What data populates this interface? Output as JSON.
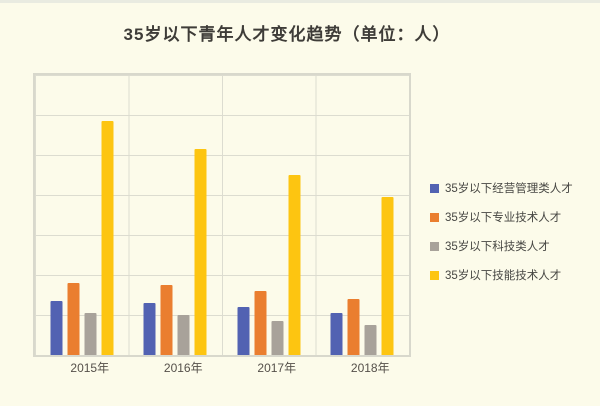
{
  "page": {
    "background_color": "#FCFBEA",
    "top_strip_color": "#E9EBE1",
    "plot_border_color": "#D8D8CC",
    "gridline_color": "#DCDCD0"
  },
  "chart_data": {
    "type": "bar",
    "title": "35岁以下青年人才变化趋势（单位：人）",
    "categories": [
      "2015年",
      "2016年",
      "2017年",
      "2018年"
    ],
    "series": [
      {
        "name": "35岁以下经营管理类人才",
        "color": "#5262B2",
        "values": [
          1.35,
          1.3,
          1.2,
          1.05
        ]
      },
      {
        "name": "35岁以下专业技术人才",
        "color": "#EA7E2F",
        "values": [
          1.8,
          1.75,
          1.6,
          1.4
        ]
      },
      {
        "name": "35岁以下科技类人才",
        "color": "#A8A29A",
        "values": [
          1.05,
          1.0,
          0.85,
          0.75
        ]
      },
      {
        "name": "35岁以下技能技术人才",
        "color": "#FDC511",
        "values": [
          5.85,
          5.15,
          4.5,
          3.95
        ]
      }
    ],
    "xlabel": "",
    "ylabel": "",
    "ylim": [
      0,
      7
    ],
    "y_gridline_interval": 1,
    "y_tick_labels_visible": false,
    "value_unit_note": "values estimated in gridline units; y axis has no tick labels",
    "grid": true,
    "legend_position": "right"
  }
}
